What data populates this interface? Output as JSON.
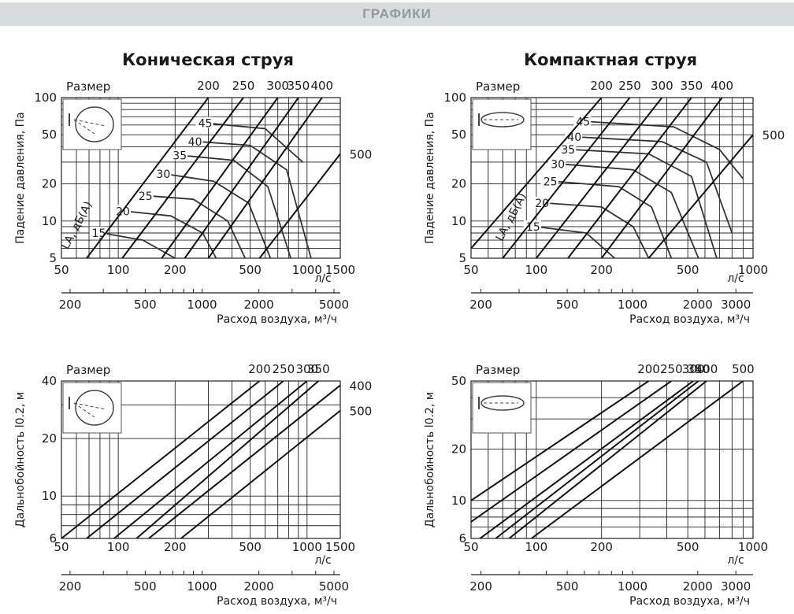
{
  "header": {
    "title": "ГРАФИКИ"
  },
  "charts": [
    {
      "title": "Коническая струя",
      "size_label": "Размер",
      "ylabel": "Падение давления, Па",
      "x_unit": "л/с",
      "x2_label": "Расход воздуха, м³/ч",
      "x_ticks": [
        "50",
        "100",
        "200",
        "500",
        "1000",
        "1500"
      ],
      "x2_ticks": [
        "200",
        "500",
        "1000",
        "2000",
        "5000"
      ],
      "y_ticks": [
        "5",
        "10",
        "20",
        "50",
        "100"
      ],
      "size_labels": [
        "200",
        "250",
        "300",
        "350",
        "400",
        "500"
      ],
      "noise_axis_label": "LA, дБ(А)",
      "noise_labels": [
        "15",
        "20",
        "25",
        "30",
        "35",
        "40",
        "45"
      ]
    },
    {
      "title": "Компактная струя",
      "size_label": "Размер",
      "ylabel": "Падение давления, Па",
      "x_unit": "л/с",
      "x2_label": "Расход воздуха, м³/ч",
      "x_ticks": [
        "50",
        "100",
        "200",
        "500",
        "1000"
      ],
      "x2_ticks": [
        "200",
        "500",
        "1000",
        "2000",
        "3000"
      ],
      "y_ticks": [
        "5",
        "10",
        "20",
        "50",
        "100"
      ],
      "size_labels": [
        "200",
        "250",
        "300",
        "350",
        "400",
        "500"
      ],
      "noise_axis_label": "LA, дБ(А)",
      "noise_labels": [
        "15",
        "20",
        "25",
        "30",
        "35",
        "40",
        "45"
      ]
    },
    {
      "title": "",
      "size_label": "Размер",
      "ylabel": "Дальнобойность l0.2, м",
      "x_unit": "л/с",
      "x2_label": "Расход воздуха, м³/ч",
      "x_ticks": [
        "50",
        "100",
        "200",
        "500",
        "1000",
        "1500"
      ],
      "x2_ticks": [
        "200",
        "500",
        "1000",
        "2000",
        "5000"
      ],
      "y_ticks": [
        "6",
        "10",
        "20",
        "40"
      ],
      "size_labels": [
        "200",
        "250",
        "300",
        "350",
        "400",
        "500"
      ]
    },
    {
      "title": "",
      "size_label": "Размер",
      "ylabel": "Дальнобойность l0.2, м",
      "x_unit": "л/с",
      "x2_label": "Расход воздуха, м³/ч",
      "x_ticks": [
        "50",
        "100",
        "200",
        "500",
        "1000"
      ],
      "x2_ticks": [
        "200",
        "500",
        "1000",
        "2000",
        "3000"
      ],
      "y_ticks": [
        "6",
        "10",
        "20",
        "50"
      ],
      "size_labels": [
        "200",
        "250",
        "300",
        "350",
        "400",
        "500"
      ]
    }
  ],
  "chart_data": [
    {
      "type": "line",
      "title": "Коническая струя",
      "xlabel": "л/с",
      "ylabel": "Падение давления, Па",
      "xscale": "log",
      "yscale": "log",
      "xlim": [
        50,
        1500
      ],
      "ylim": [
        5,
        100
      ],
      "secondary_x": {
        "label": "Расход воздуха, м³/ч",
        "lim": [
          180,
          5400
        ]
      },
      "series": [
        {
          "name": "200",
          "x": [
            68,
            300
          ],
          "y": [
            5,
            100
          ]
        },
        {
          "name": "250",
          "x": [
            105,
            460
          ],
          "y": [
            5,
            100
          ]
        },
        {
          "name": "300",
          "x": [
            170,
            700
          ],
          "y": [
            5,
            100
          ]
        },
        {
          "name": "350",
          "x": [
            225,
            900
          ],
          "y": [
            5,
            100
          ]
        },
        {
          "name": "400",
          "x": [
            300,
            1200
          ],
          "y": [
            5,
            100
          ]
        },
        {
          "name": "500",
          "x": [
            560,
            1500
          ],
          "y": [
            5,
            35
          ]
        }
      ],
      "noise_curves": [
        {
          "name": "15",
          "x": [
            82,
            135,
            200
          ],
          "y": [
            8,
            7,
            5
          ]
        },
        {
          "name": "20",
          "x": [
            110,
            190,
            280,
            330
          ],
          "y": [
            12,
            11,
            8,
            5
          ]
        },
        {
          "name": "25",
          "x": [
            145,
            250,
            380,
            470
          ],
          "y": [
            16,
            15,
            10,
            5
          ]
        },
        {
          "name": "30",
          "x": [
            180,
            320,
            490,
            640
          ],
          "y": [
            24,
            21,
            14,
            5
          ]
        },
        {
          "name": "35",
          "x": [
            220,
            410,
            620,
            820
          ],
          "y": [
            34,
            31,
            19,
            5
          ]
        },
        {
          "name": "40",
          "x": [
            265,
            500,
            780,
            1050
          ],
          "y": [
            44,
            41,
            26,
            5
          ]
        },
        {
          "name": "45",
          "x": [
            300,
            600,
            950
          ],
          "y": [
            62,
            56,
            30
          ]
        }
      ]
    },
    {
      "type": "line",
      "title": "Компактная струя",
      "xlabel": "л/с",
      "ylabel": "Падение давления, Па",
      "xscale": "log",
      "yscale": "log",
      "xlim": [
        50,
        1000
      ],
      "ylim": [
        5,
        100
      ],
      "secondary_x": {
        "label": "Расход воздуха, м³/ч",
        "lim": [
          180,
          3600
        ]
      },
      "series": [
        {
          "name": "200",
          "x": [
            50,
            200
          ],
          "y": [
            6,
            100
          ]
        },
        {
          "name": "250",
          "x": [
            70,
            270
          ],
          "y": [
            5,
            100
          ]
        },
        {
          "name": "300",
          "x": [
            100,
            380
          ],
          "y": [
            5,
            100
          ]
        },
        {
          "name": "350",
          "x": [
            140,
            520
          ],
          "y": [
            5,
            100
          ]
        },
        {
          "name": "400",
          "x": [
            200,
            720
          ],
          "y": [
            5,
            100
          ]
        },
        {
          "name": "500",
          "x": [
            330,
            1000
          ],
          "y": [
            5,
            50
          ]
        }
      ],
      "noise_curves": [
        {
          "name": "15",
          "x": [
            100,
            170,
            230
          ],
          "y": [
            9,
            8,
            5
          ]
        },
        {
          "name": "20",
          "x": [
            110,
            200,
            280,
            330
          ],
          "y": [
            14,
            13,
            9,
            5
          ]
        },
        {
          "name": "25",
          "x": [
            120,
            240,
            340,
            420
          ],
          "y": [
            21,
            19,
            13,
            5
          ]
        },
        {
          "name": "30",
          "x": [
            130,
            280,
            420,
            560
          ],
          "y": [
            29,
            26,
            17,
            5
          ]
        },
        {
          "name": "35",
          "x": [
            145,
            330,
            520,
            680
          ],
          "y": [
            38,
            35,
            23,
            5
          ]
        },
        {
          "name": "40",
          "x": [
            155,
            380,
            610,
            800
          ],
          "y": [
            48,
            44,
            30,
            8
          ]
        },
        {
          "name": "45",
          "x": [
            170,
            430,
            700,
            900
          ],
          "y": [
            64,
            58,
            38,
            22
          ]
        }
      ]
    },
    {
      "type": "line",
      "title": "",
      "xlabel": "л/с",
      "ylabel": "Дальнобойность l0.2, м",
      "xscale": "log",
      "yscale": "log",
      "xlim": [
        50,
        1500
      ],
      "ylim": [
        6,
        40
      ],
      "secondary_x": {
        "label": "Расход воздуха, м³/ч",
        "lim": [
          180,
          5400
        ]
      },
      "series": [
        {
          "name": "200",
          "x": [
            50,
            560
          ],
          "y": [
            6,
            40
          ]
        },
        {
          "name": "250",
          "x": [
            68,
            750
          ],
          "y": [
            6,
            40
          ]
        },
        {
          "name": "300",
          "x": [
            95,
            1000
          ],
          "y": [
            6,
            40
          ]
        },
        {
          "name": "350",
          "x": [
            125,
            1150
          ],
          "y": [
            6,
            40
          ]
        },
        {
          "name": "400",
          "x": [
            145,
            1500
          ],
          "y": [
            6,
            38
          ]
        },
        {
          "name": "500",
          "x": [
            215,
            1500
          ],
          "y": [
            6,
            28
          ]
        }
      ]
    },
    {
      "type": "line",
      "title": "",
      "xlabel": "л/с",
      "ylabel": "Дальнобойность l0.2, м",
      "xscale": "log",
      "yscale": "log",
      "xlim": [
        50,
        1000
      ],
      "ylim": [
        6,
        50
      ],
      "secondary_x": {
        "label": "Расход воздуха, м³/ч",
        "lim": [
          180,
          3600
        ]
      },
      "series": [
        {
          "name": "200",
          "x": [
            50,
            330
          ],
          "y": [
            10,
            50
          ]
        },
        {
          "name": "250",
          "x": [
            50,
            420
          ],
          "y": [
            7.5,
            50
          ]
        },
        {
          "name": "300",
          "x": [
            55,
            530
          ],
          "y": [
            6,
            50
          ]
        },
        {
          "name": "350",
          "x": [
            65,
            560
          ],
          "y": [
            6,
            50
          ]
        },
        {
          "name": "400",
          "x": [
            75,
            610
          ],
          "y": [
            6,
            50
          ]
        },
        {
          "name": "500",
          "x": [
            95,
            900
          ],
          "y": [
            6,
            50
          ]
        }
      ]
    }
  ]
}
